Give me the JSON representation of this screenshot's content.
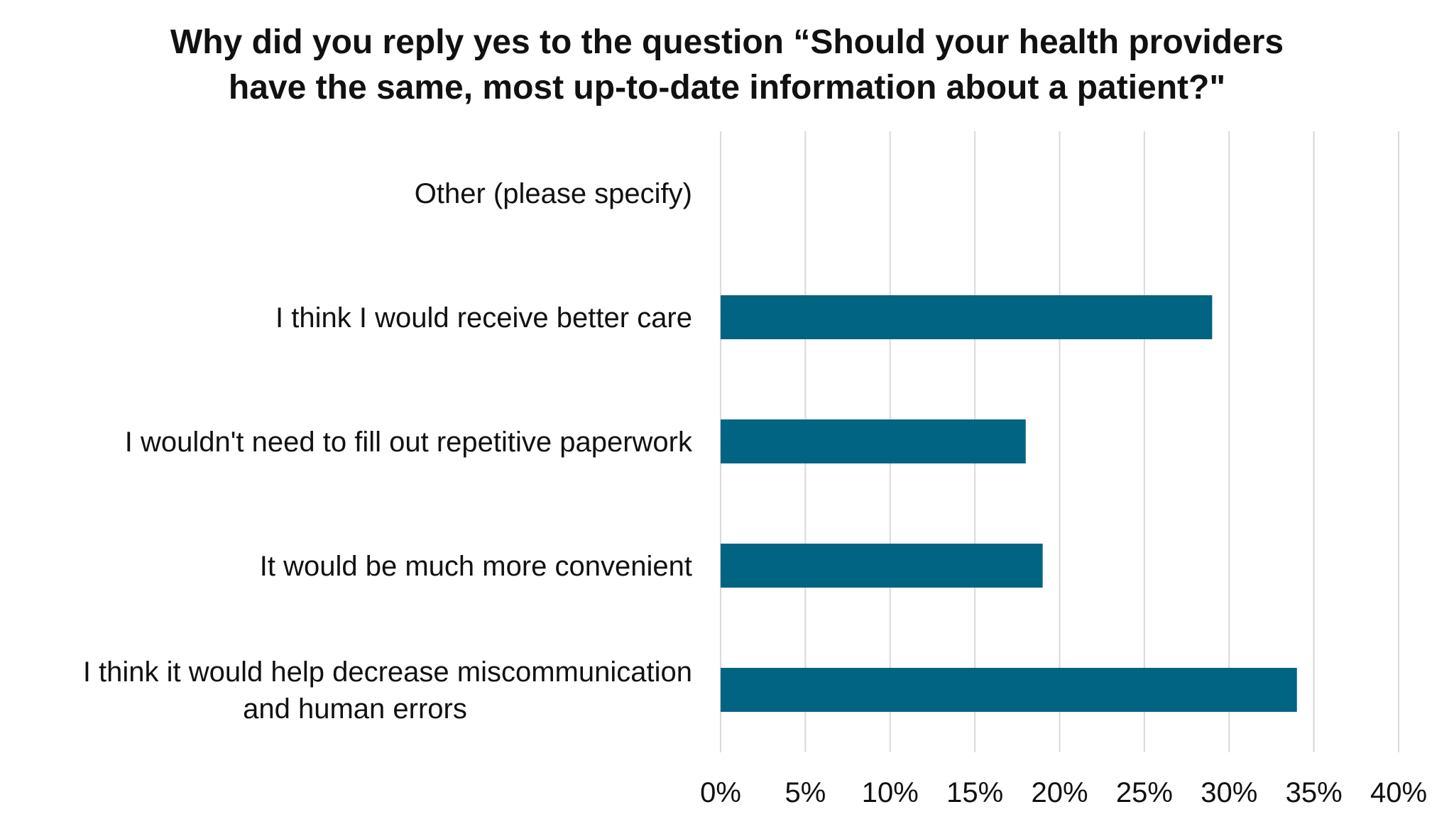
{
  "chart_data": {
    "type": "bar",
    "orientation": "horizontal",
    "title": "Why did you reply yes to the question “Should your health providers\nhave the same, most up-to-date information about a patient?\"",
    "categories": [
      "Other (please specify)",
      "I think I would receive better care",
      "I wouldn't need to fill out repetitive paperwork",
      "It would be much more convenient",
      "I think it would help decrease miscommunication\nand human errors"
    ],
    "values": [
      0,
      29,
      18,
      19,
      34
    ],
    "xlim": [
      0,
      40
    ],
    "xticks": [
      "0%",
      "5%",
      "10%",
      "15%",
      "20%",
      "25%",
      "30%",
      "35%",
      "40%"
    ],
    "xlabel": "",
    "ylabel": "",
    "grid": "vertical",
    "bar_color": "#006482",
    "legend": "none"
  }
}
